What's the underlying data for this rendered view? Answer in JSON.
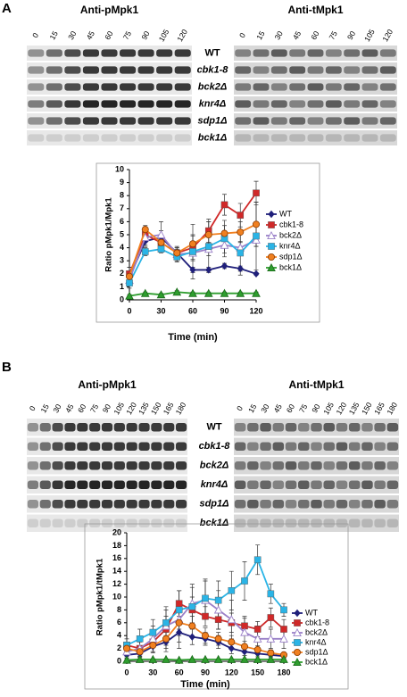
{
  "panels": [
    {
      "label": "A",
      "blots": [
        "Anti-pMpk1",
        "Anti-tMpk1"
      ],
      "lanes": [
        "0",
        "15",
        "30",
        "45",
        "60",
        "75",
        "90",
        "105",
        "120"
      ],
      "strains": [
        "WT",
        "cbk1-8",
        "bck2Δ",
        "knr4Δ",
        "sdp1Δ",
        "bck1Δ"
      ]
    },
    {
      "label": "B",
      "blots": [
        "Anti-pMpk1",
        "Anti-tMpk1"
      ],
      "lanes": [
        "0",
        "15",
        "30",
        "45",
        "60",
        "75",
        "90",
        "105",
        "120",
        "135",
        "150",
        "165",
        "180"
      ],
      "strains": [
        "WT",
        "cbk1-8",
        "bck2Δ",
        "knr4Δ",
        "sdp1Δ",
        "bck1Δ"
      ]
    }
  ],
  "chart_data": [
    {
      "type": "line",
      "xlabel": "Time (min)",
      "ylabel": "Ratio pMpk1/Mpk1",
      "x": [
        0,
        15,
        30,
        45,
        60,
        75,
        90,
        105,
        120
      ],
      "xlim": [
        0,
        120
      ],
      "xticks": [
        0,
        30,
        60,
        90,
        120
      ],
      "ylim": [
        0,
        10
      ],
      "yticks": [
        0,
        1,
        2,
        3,
        4,
        5,
        6,
        7,
        8,
        9,
        10
      ],
      "series": [
        {
          "name": "WT",
          "color": "#1f1f7a",
          "marker": "diamond",
          "values": [
            1.7,
            4.5,
            4.8,
            3.6,
            2.3,
            2.3,
            2.6,
            2.4,
            2.0
          ],
          "errors": [
            0.8,
            0.4,
            0.5,
            0.3,
            0.2,
            0.2,
            0.2,
            0.2,
            0.1
          ]
        },
        {
          "name": "cbk1-8",
          "color": "#d02828",
          "marker": "square",
          "values": [
            2.0,
            5.0,
            4.4,
            3.6,
            4.0,
            5.3,
            7.3,
            6.5,
            8.2
          ],
          "errors": [
            0.5,
            0.6,
            0.5,
            0.4,
            0.9,
            0.9,
            0.8,
            0.9,
            0.9
          ]
        },
        {
          "name": "bck2Δ",
          "color": "#9a80c8",
          "marker": "triangle-open",
          "values": [
            1.5,
            4.8,
            5.0,
            3.5,
            3.6,
            3.9,
            4.2,
            4.0,
            4.6
          ],
          "errors": [
            0.3,
            0.6,
            1.0,
            0.5,
            0.6,
            0.5,
            0.6,
            0.5,
            0.5
          ]
        },
        {
          "name": "knr4Δ",
          "color": "#2ab4e6",
          "marker": "square",
          "values": [
            1.3,
            3.7,
            3.9,
            3.3,
            3.7,
            4.1,
            4.7,
            3.6,
            4.9
          ],
          "errors": [
            0.2,
            0.3,
            0.3,
            0.4,
            2.1,
            1.9,
            1.4,
            1.7,
            2.6
          ]
        },
        {
          "name": "sdp1Δ",
          "color": "#f08020",
          "marker": "circle",
          "values": [
            1.8,
            5.4,
            4.4,
            3.6,
            4.3,
            5.0,
            5.1,
            5.2,
            5.8
          ],
          "errors": [
            0.2,
            0.3,
            0.4,
            0.5,
            0.7,
            1.0,
            0.6,
            0.8,
            1.7
          ]
        },
        {
          "name": "bck1Δ",
          "color": "#2e9e2e",
          "marker": "triangle",
          "values": [
            0.3,
            0.5,
            0.4,
            0.6,
            0.5,
            0.5,
            0.5,
            0.5,
            0.5
          ],
          "errors": [
            0.1,
            0.1,
            0.1,
            0.1,
            0.1,
            0.1,
            0.1,
            0.1,
            0.1
          ]
        }
      ]
    },
    {
      "type": "line",
      "xlabel": "Time (min)",
      "ylabel": "Ratio pMpk1/tMpk1",
      "x": [
        0,
        15,
        30,
        45,
        60,
        75,
        90,
        105,
        120,
        135,
        150,
        165,
        180
      ],
      "xlim": [
        0,
        180
      ],
      "xticks": [
        0,
        30,
        60,
        90,
        120,
        150,
        180
      ],
      "ylim": [
        0,
        20
      ],
      "yticks": [
        0,
        2,
        4,
        6,
        8,
        10,
        12,
        14,
        16,
        18,
        20
      ],
      "series": [
        {
          "name": "WT",
          "color": "#1f1f7a",
          "marker": "diamond",
          "values": [
            1.0,
            1.2,
            2.3,
            3.0,
            4.5,
            3.8,
            3.5,
            3.0,
            2.0,
            1.5,
            1.2,
            1.0,
            0.8
          ],
          "errors": [
            0.5,
            0.6,
            1.0,
            1.5,
            1.5,
            1.2,
            1.0,
            1.0,
            0.8,
            0.6,
            0.5,
            0.4,
            0.3
          ]
        },
        {
          "name": "cbk1-8",
          "color": "#d02828",
          "marker": "square",
          "values": [
            2.5,
            2.0,
            3.0,
            5.0,
            9.0,
            8.0,
            7.0,
            6.5,
            6.0,
            5.5,
            5.0,
            6.8,
            5.0
          ],
          "errors": [
            1.0,
            1.0,
            1.5,
            2.0,
            2.0,
            2.0,
            1.5,
            1.5,
            1.5,
            1.2,
            1.2,
            1.5,
            1.5
          ]
        },
        {
          "name": "bck2Δ",
          "color": "#9a80c8",
          "marker": "triangle-open",
          "values": [
            1.5,
            2.0,
            3.5,
            5.5,
            6.5,
            9.0,
            9.5,
            8.0,
            6.5,
            4.5,
            3.5,
            3.5,
            3.5
          ],
          "errors": [
            0.8,
            1.2,
            2.0,
            3.0,
            4.5,
            3.0,
            3.0,
            3.0,
            3.0,
            2.5,
            2.0,
            1.5,
            1.5
          ]
        },
        {
          "name": "knr4Δ",
          "color": "#2ab4e6",
          "marker": "square",
          "values": [
            2.5,
            3.5,
            4.5,
            6.0,
            8.0,
            8.5,
            9.8,
            9.5,
            11.0,
            12.5,
            15.8,
            10.5,
            8.0
          ],
          "errors": [
            1.0,
            1.5,
            2.0,
            2.0,
            3.0,
            3.0,
            3.0,
            3.0,
            3.0,
            3.0,
            2.3,
            1.5,
            1.0
          ]
        },
        {
          "name": "sdp1Δ",
          "color": "#f08020",
          "marker": "circle",
          "values": [
            2.0,
            1.5,
            2.5,
            3.5,
            6.0,
            5.5,
            4.0,
            3.5,
            3.0,
            2.3,
            1.8,
            1.3,
            1.0
          ],
          "errors": [
            0.8,
            0.8,
            1.0,
            1.5,
            2.0,
            1.5,
            1.2,
            1.0,
            1.0,
            0.8,
            0.6,
            0.5,
            0.4
          ]
        },
        {
          "name": "bck1Δ",
          "color": "#2e9e2e",
          "marker": "triangle",
          "values": [
            0.2,
            0.3,
            0.3,
            0.3,
            0.2,
            0.3,
            0.3,
            0.3,
            0.3,
            0.3,
            0.3,
            0.3,
            0.3
          ],
          "errors": [
            0.1,
            0.1,
            0.1,
            0.1,
            0.1,
            0.1,
            0.1,
            0.1,
            0.1,
            0.1,
            0.1,
            0.1,
            0.1
          ]
        }
      ]
    }
  ]
}
